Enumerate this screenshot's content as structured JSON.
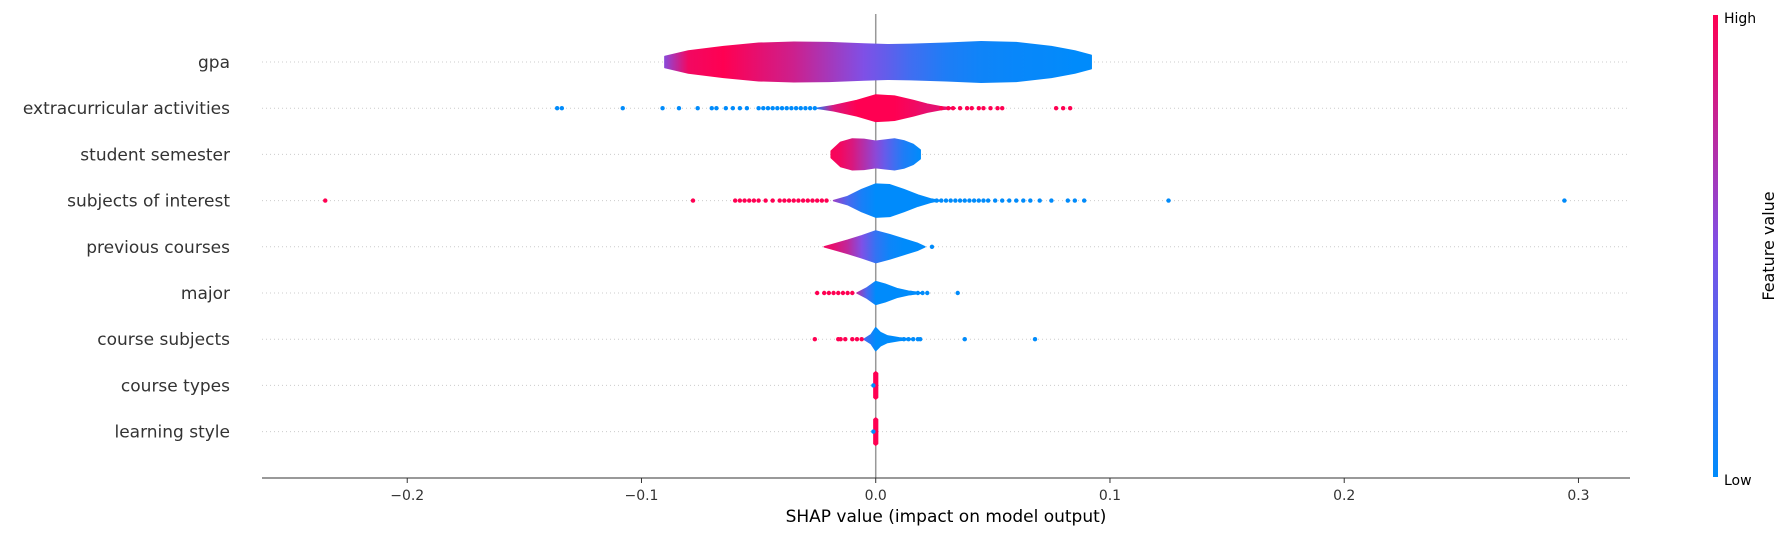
{
  "chart_data": {
    "type": "violin",
    "xlabel": "SHAP value (impact on model output)",
    "xlim": [
      -0.262,
      0.322
    ],
    "xticks": [
      -0.2,
      -0.1,
      0.0,
      0.1,
      0.2,
      0.3
    ],
    "xtick_labels": [
      "−0.2",
      "−0.1",
      "0.0",
      "0.1",
      "0.2",
      "0.3"
    ],
    "colorbar": {
      "title": "Feature value",
      "high_label": "High",
      "low_label": "Low",
      "high_color": "#ff0052",
      "mid_color": "#7f50e6",
      "low_color": "#008bfb"
    },
    "features": [
      {
        "name": "gpa",
        "profile": [
          [
            -0.09,
            0.25,
            0.55
          ],
          [
            -0.08,
            0.5,
            0.95
          ],
          [
            -0.065,
            0.7,
            1.0
          ],
          [
            -0.05,
            0.85,
            0.9
          ],
          [
            -0.035,
            0.9,
            0.8
          ],
          [
            -0.02,
            0.88,
            0.65
          ],
          [
            -0.005,
            0.82,
            0.5
          ],
          [
            0.005,
            0.78,
            0.38
          ],
          [
            0.015,
            0.8,
            0.25
          ],
          [
            0.03,
            0.85,
            0.12
          ],
          [
            0.045,
            0.92,
            0.06
          ],
          [
            0.06,
            0.88,
            0.03
          ],
          [
            0.075,
            0.7,
            0.02
          ],
          [
            0.085,
            0.5,
            0.0
          ],
          [
            0.092,
            0.3,
            0.0
          ]
        ],
        "points": []
      },
      {
        "name": "extracurricular activities",
        "profile": [
          [
            -0.025,
            0.0,
            0.15
          ],
          [
            -0.018,
            0.12,
            0.85
          ],
          [
            -0.008,
            0.35,
            1.0
          ],
          [
            0.0,
            0.6,
            1.0
          ],
          [
            0.008,
            0.55,
            1.0
          ],
          [
            0.016,
            0.35,
            0.95
          ],
          [
            0.022,
            0.18,
            0.9
          ],
          [
            0.028,
            0.06,
            0.9
          ],
          [
            0.034,
            0.0,
            0.9
          ]
        ],
        "points": [
          [
            -0.136,
            0.0
          ],
          [
            -0.134,
            0.0
          ],
          [
            -0.108,
            0.0
          ],
          [
            -0.091,
            0.0
          ],
          [
            -0.084,
            0.0
          ],
          [
            -0.076,
            0.0
          ],
          [
            -0.07,
            0.0
          ],
          [
            -0.068,
            0.0
          ],
          [
            -0.064,
            0.0
          ],
          [
            -0.061,
            0.0
          ],
          [
            -0.058,
            0.0
          ],
          [
            -0.055,
            0.0
          ],
          [
            -0.05,
            0.0
          ],
          [
            -0.048,
            0.0
          ],
          [
            -0.046,
            0.0
          ],
          [
            -0.044,
            0.0
          ],
          [
            -0.042,
            0.0
          ],
          [
            -0.04,
            0.0
          ],
          [
            -0.038,
            0.0
          ],
          [
            -0.036,
            0.0
          ],
          [
            -0.034,
            0.0
          ],
          [
            -0.032,
            0.0
          ],
          [
            -0.03,
            0.0
          ],
          [
            -0.028,
            0.0
          ],
          [
            -0.026,
            0.0
          ],
          [
            0.028,
            1.0
          ],
          [
            0.031,
            1.0
          ],
          [
            0.033,
            1.0
          ],
          [
            0.036,
            1.0
          ],
          [
            0.039,
            1.0
          ],
          [
            0.041,
            1.0
          ],
          [
            0.044,
            1.0
          ],
          [
            0.046,
            1.0
          ],
          [
            0.049,
            1.0
          ],
          [
            0.052,
            1.0
          ],
          [
            0.054,
            1.0
          ],
          [
            0.077,
            1.0
          ],
          [
            0.08,
            1.0
          ],
          [
            0.083,
            1.0
          ]
        ]
      },
      {
        "name": "student semester",
        "profile": [
          [
            -0.019,
            0.15,
            0.98
          ],
          [
            -0.015,
            0.55,
            0.95
          ],
          [
            -0.01,
            0.7,
            0.85
          ],
          [
            -0.005,
            0.68,
            0.7
          ],
          [
            0.0,
            0.6,
            0.55
          ],
          [
            0.004,
            0.65,
            0.4
          ],
          [
            0.008,
            0.7,
            0.25
          ],
          [
            0.012,
            0.62,
            0.12
          ],
          [
            0.016,
            0.45,
            0.05
          ],
          [
            0.019,
            0.2,
            0.0
          ]
        ],
        "points": []
      },
      {
        "name": "subjects of interest",
        "profile": [
          [
            -0.018,
            0.0,
            0.6
          ],
          [
            -0.012,
            0.18,
            0.3
          ],
          [
            -0.006,
            0.5,
            0.1
          ],
          [
            0.0,
            0.75,
            0.0
          ],
          [
            0.006,
            0.72,
            0.0
          ],
          [
            0.012,
            0.5,
            0.0
          ],
          [
            0.018,
            0.25,
            0.0
          ],
          [
            0.024,
            0.06,
            0.0
          ],
          [
            0.028,
            0.0,
            0.0
          ]
        ],
        "points": [
          [
            -0.235,
            1.0
          ],
          [
            -0.078,
            1.0
          ],
          [
            -0.06,
            1.0
          ],
          [
            -0.058,
            1.0
          ],
          [
            -0.056,
            1.0
          ],
          [
            -0.054,
            1.0
          ],
          [
            -0.052,
            1.0
          ],
          [
            -0.05,
            1.0
          ],
          [
            -0.047,
            1.0
          ],
          [
            -0.044,
            1.0
          ],
          [
            -0.041,
            1.0
          ],
          [
            -0.039,
            1.0
          ],
          [
            -0.037,
            1.0
          ],
          [
            -0.035,
            1.0
          ],
          [
            -0.033,
            1.0
          ],
          [
            -0.031,
            1.0
          ],
          [
            -0.029,
            1.0
          ],
          [
            -0.027,
            1.0
          ],
          [
            -0.025,
            1.0
          ],
          [
            -0.023,
            1.0
          ],
          [
            -0.021,
            1.0
          ],
          [
            0.022,
            0.0
          ],
          [
            0.024,
            0.0
          ],
          [
            0.026,
            0.0
          ],
          [
            0.028,
            0.0
          ],
          [
            0.03,
            0.0
          ],
          [
            0.032,
            0.0
          ],
          [
            0.034,
            0.0
          ],
          [
            0.036,
            0.0
          ],
          [
            0.038,
            0.0
          ],
          [
            0.04,
            0.0
          ],
          [
            0.042,
            0.0
          ],
          [
            0.044,
            0.0
          ],
          [
            0.046,
            0.0
          ],
          [
            0.048,
            0.0
          ],
          [
            0.051,
            0.0
          ],
          [
            0.054,
            0.0
          ],
          [
            0.057,
            0.0
          ],
          [
            0.06,
            0.0
          ],
          [
            0.063,
            0.0
          ],
          [
            0.066,
            0.0
          ],
          [
            0.07,
            0.0
          ],
          [
            0.075,
            0.0
          ],
          [
            0.082,
            0.0
          ],
          [
            0.085,
            0.0
          ],
          [
            0.089,
            0.0
          ],
          [
            0.125,
            0.0
          ],
          [
            0.294,
            0.0
          ]
        ]
      },
      {
        "name": "previous courses",
        "profile": [
          [
            -0.022,
            0.0,
            0.95
          ],
          [
            -0.018,
            0.12,
            0.9
          ],
          [
            -0.012,
            0.3,
            0.75
          ],
          [
            -0.006,
            0.5,
            0.5
          ],
          [
            0.0,
            0.72,
            0.2
          ],
          [
            0.006,
            0.55,
            0.05
          ],
          [
            0.012,
            0.35,
            0.0
          ],
          [
            0.018,
            0.15,
            0.0
          ],
          [
            0.021,
            0.0,
            0.0
          ]
        ],
        "points": [
          [
            0.024,
            0.0
          ]
        ]
      },
      {
        "name": "major",
        "profile": [
          [
            -0.008,
            0.0,
            0.7
          ],
          [
            -0.004,
            0.22,
            0.3
          ],
          [
            0.0,
            0.52,
            0.0
          ],
          [
            0.004,
            0.4,
            0.0
          ],
          [
            0.009,
            0.2,
            0.0
          ],
          [
            0.014,
            0.08,
            0.0
          ],
          [
            0.02,
            0.0,
            0.0
          ]
        ],
        "points": [
          [
            -0.025,
            1.0
          ],
          [
            -0.022,
            1.0
          ],
          [
            -0.02,
            1.0
          ],
          [
            -0.018,
            1.0
          ],
          [
            -0.016,
            1.0
          ],
          [
            -0.014,
            1.0
          ],
          [
            -0.012,
            1.0
          ],
          [
            -0.01,
            1.0
          ],
          [
            0.015,
            0.0
          ],
          [
            0.018,
            0.0
          ],
          [
            0.02,
            0.0
          ],
          [
            0.022,
            0.0
          ],
          [
            0.035,
            0.0
          ]
        ]
      },
      {
        "name": "course subjects",
        "profile": [
          [
            -0.005,
            0.0,
            0.3
          ],
          [
            -0.002,
            0.2,
            0.1
          ],
          [
            0.0,
            0.52,
            0.0
          ],
          [
            0.002,
            0.3,
            0.0
          ],
          [
            0.005,
            0.15,
            0.0
          ],
          [
            0.01,
            0.06,
            0.0
          ],
          [
            0.016,
            0.0,
            0.0
          ]
        ],
        "points": [
          [
            -0.026,
            1.0
          ],
          [
            -0.016,
            1.0
          ],
          [
            -0.015,
            1.0
          ],
          [
            -0.013,
            1.0
          ],
          [
            -0.01,
            1.0
          ],
          [
            -0.008,
            1.0
          ],
          [
            -0.006,
            1.0
          ],
          [
            0.012,
            0.0
          ],
          [
            0.014,
            0.0
          ],
          [
            0.016,
            0.0
          ],
          [
            0.018,
            0.0
          ],
          [
            0.019,
            0.0
          ],
          [
            0.038,
            0.0
          ],
          [
            0.068,
            0.0
          ]
        ]
      },
      {
        "name": "course types",
        "profile": [
          [
            -0.0008,
            0.55,
            1.0
          ],
          [
            0.0,
            0.62,
            1.0
          ],
          [
            0.0008,
            0.55,
            1.0
          ]
        ],
        "points": [
          [
            -0.001,
            0.0
          ]
        ]
      },
      {
        "name": "learning style",
        "profile": [
          [
            -0.0008,
            0.55,
            1.0
          ],
          [
            0.0,
            0.62,
            1.0
          ],
          [
            0.0008,
            0.55,
            1.0
          ]
        ],
        "points": [
          [
            -0.001,
            0.0
          ]
        ]
      }
    ]
  }
}
